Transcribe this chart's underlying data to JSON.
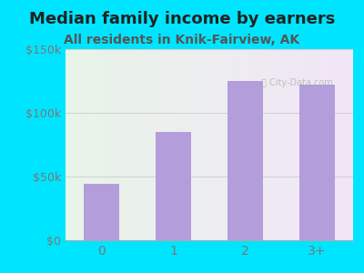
{
  "title": "Median family income by earners",
  "subtitle": "All residents in Knik-Fairview, AK",
  "categories": [
    "0",
    "1",
    "2",
    "3+"
  ],
  "values": [
    44000,
    85000,
    125000,
    122000
  ],
  "bar_color": "#b39ddb",
  "title_fontsize": 13,
  "subtitle_fontsize": 10,
  "title_color": "#222222",
  "subtitle_color": "#555555",
  "tick_color": "#777777",
  "background_outer": "#00e5ff",
  "ylim": [
    0,
    150000
  ],
  "yticks": [
    0,
    50000,
    100000,
    150000
  ],
  "ytick_labels": [
    "$0",
    "$50k",
    "$100k",
    "$150k"
  ]
}
